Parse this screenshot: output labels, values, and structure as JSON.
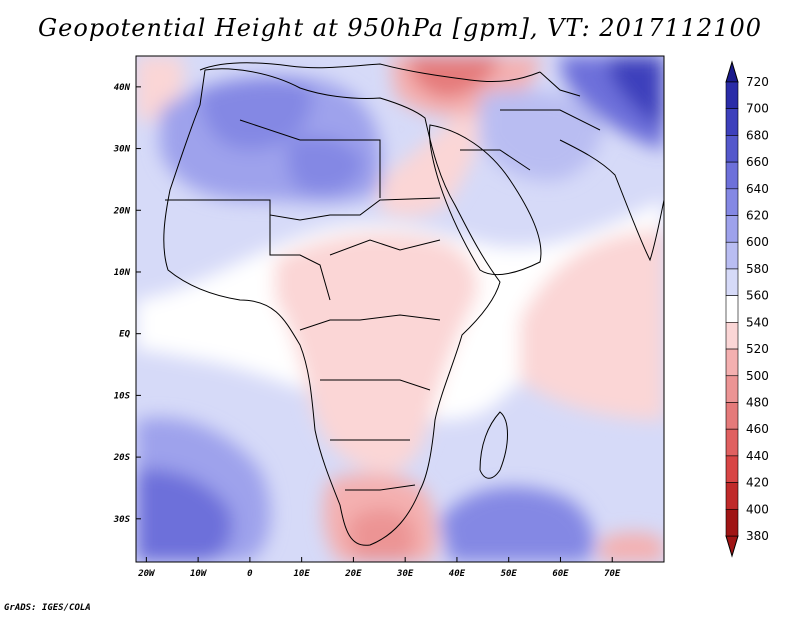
{
  "title": "Geopotential Height at 950hPa [gpm], VT: 2017112100",
  "footer": "GrADS: IGES/COLA",
  "map": {
    "lon_range": [
      -22,
      80
    ],
    "lat_range": [
      -37,
      45
    ],
    "x_ticks": [
      {
        "lon": -20,
        "label": "20W"
      },
      {
        "lon": -10,
        "label": "10W"
      },
      {
        "lon": 0,
        "label": "0"
      },
      {
        "lon": 10,
        "label": "10E"
      },
      {
        "lon": 20,
        "label": "20E"
      },
      {
        "lon": 30,
        "label": "30E"
      },
      {
        "lon": 40,
        "label": "40E"
      },
      {
        "lon": 50,
        "label": "50E"
      },
      {
        "lon": 60,
        "label": "60E"
      },
      {
        "lon": 70,
        "label": "70E"
      }
    ],
    "y_ticks": [
      {
        "lat": 40,
        "label": "40N"
      },
      {
        "lat": 30,
        "label": "30N"
      },
      {
        "lat": 20,
        "label": "20N"
      },
      {
        "lat": 10,
        "label": "10N"
      },
      {
        "lat": 0,
        "label": "EQ"
      },
      {
        "lat": -10,
        "label": "10S"
      },
      {
        "lat": -20,
        "label": "20S"
      },
      {
        "lat": -30,
        "label": "30S"
      }
    ]
  },
  "colorbar": {
    "levels": [
      "380",
      "400",
      "420",
      "440",
      "460",
      "480",
      "500",
      "520",
      "540",
      "560",
      "580",
      "600",
      "620",
      "640",
      "660",
      "680",
      "700",
      "720"
    ],
    "colors": [
      "#a01515",
      "#c02a2a",
      "#d84545",
      "#e06060",
      "#e57a7a",
      "#ec9494",
      "#f4b0b0",
      "#fbd6d6",
      "#ffffff",
      "#d6daf8",
      "#b9bdf2",
      "#9ea2ec",
      "#8488e4",
      "#6d70da",
      "#5458cc",
      "#3d40bc",
      "#2a2ca8",
      "#1a1a8c"
    ]
  }
}
